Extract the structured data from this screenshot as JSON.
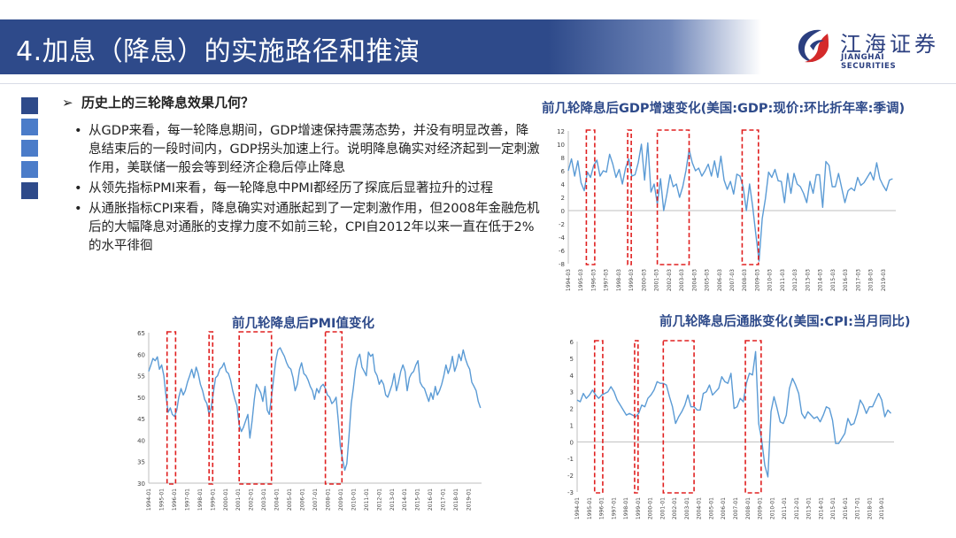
{
  "header": {
    "title": "4.加息（降息）的实施路径和推演",
    "logo_cn": "江海证券",
    "logo_en": "JIANGHAI SECURITIES"
  },
  "colors": {
    "header_blue": "#2e4a8a",
    "series_blue": "#5b9bd5",
    "highlight_red": "#e02020",
    "side_squares": [
      "#2e4a8a",
      "#4b7cc9",
      "#4b7cc9",
      "#4b7cc9",
      "#2e4a8a"
    ]
  },
  "content": {
    "question": "历史上的三轮降息效果几何？",
    "arrow": "➢",
    "bullet": "•",
    "items": [
      "从GDP来看，每一轮降息期间，GDP增速保持震荡态势，并没有明显改善，降息结束后的一段时间内，GDP拐头加速上行。说明降息确实对经济起到一定刺激作用，美联储一般会等到经济企稳后停止降息",
      "从领先指标PMI来看，每一轮降息中PMI都经历了探底后显著拉升的过程",
      "从通胀指标CPI来看，降息确实对通胀起到了一定刺激作用，但2008年金融危机后的大幅降息对通胀的支撑力度不如前三轮，CPI自2012年以来一直在低于2%的水平徘徊"
    ]
  },
  "chart_data": [
    {
      "id": "gdp",
      "type": "line",
      "title": "前几轮降息后GDP增速变化(美国:GDP:现价:环比折年率:季调)",
      "xlabel": "",
      "ylabel": "",
      "ylim": [
        -8,
        12
      ],
      "yticks": [
        -8,
        -6,
        -4,
        -2,
        0,
        2,
        4,
        6,
        8,
        10,
        12
      ],
      "xlim": [
        1994.0,
        2019.75
      ],
      "xtick_labels": [
        "1994-03",
        "1995-03",
        "1996-03",
        "1997-03",
        "1998-03",
        "1999-03",
        "2000-03",
        "2001-03",
        "2002-03",
        "2003-03",
        "2004-03",
        "2005-03",
        "2006-03",
        "2007-03",
        "2008-03",
        "2009-03",
        "2010-03",
        "2011-03",
        "2012-03",
        "2013-03",
        "2014-03",
        "2015-03",
        "2016-03",
        "2017-03",
        "2018-03",
        "2019-03"
      ],
      "grid": false,
      "x": [
        1994.0,
        1994.25,
        1994.5,
        1994.75,
        1995.0,
        1995.25,
        1995.5,
        1995.75,
        1996.0,
        1996.25,
        1996.5,
        1996.75,
        1997.0,
        1997.25,
        1997.5,
        1997.75,
        1998.0,
        1998.25,
        1998.5,
        1998.75,
        1999.0,
        1999.25,
        1999.5,
        1999.75,
        2000.0,
        2000.25,
        2000.5,
        2000.75,
        2001.0,
        2001.25,
        2001.5,
        2001.75,
        2002.0,
        2002.25,
        2002.5,
        2002.75,
        2003.0,
        2003.25,
        2003.5,
        2003.75,
        2004.0,
        2004.25,
        2004.5,
        2004.75,
        2005.0,
        2005.25,
        2005.5,
        2005.75,
        2006.0,
        2006.25,
        2006.5,
        2006.75,
        2007.0,
        2007.25,
        2007.5,
        2007.75,
        2008.0,
        2008.25,
        2008.5,
        2008.75,
        2009.0,
        2009.25,
        2009.5,
        2009.75,
        2010.0,
        2010.25,
        2010.5,
        2010.75,
        2011.0,
        2011.25,
        2011.5,
        2011.75,
        2012.0,
        2012.25,
        2012.5,
        2012.75,
        2013.0,
        2013.25,
        2013.5,
        2013.75,
        2014.0,
        2014.25,
        2014.5,
        2014.75,
        2015.0,
        2015.25,
        2015.5,
        2015.75,
        2016.0,
        2016.25,
        2016.5,
        2016.75,
        2017.0,
        2017.25,
        2017.5,
        2017.75,
        2018.0,
        2018.25,
        2018.5,
        2018.75,
        2019.0,
        2019.25,
        2019.5
      ],
      "series": [
        {
          "values": [
            6.0,
            7.8,
            5.2,
            7.5,
            4.2,
            3.0,
            5.8,
            5.0,
            6.8,
            7.6,
            5.2,
            6.0,
            5.8,
            8.5,
            7.0,
            5.0,
            6.2,
            4.0,
            6.4,
            7.8,
            5.2,
            5.4,
            7.2,
            10.0,
            4.6,
            10.2,
            2.8,
            4.0,
            1.0,
            4.8,
            0.0,
            2.5,
            5.4,
            3.6,
            4.0,
            2.0,
            3.6,
            6.0,
            9.2,
            7.2,
            6.0,
            6.4,
            5.2,
            6.0,
            7.0,
            5.2,
            7.5,
            5.0,
            8.2,
            4.6,
            3.2,
            4.4,
            2.5,
            5.5,
            5.2,
            3.5,
            0.0,
            4.0,
            0.6,
            -3.6,
            -7.6,
            -1.2,
            1.8,
            5.8,
            5.0,
            6.2,
            4.5,
            4.4,
            1.2,
            5.6,
            2.6,
            5.6,
            4.0,
            3.6,
            2.6,
            1.2,
            4.4,
            2.6,
            5.4,
            5.4,
            0.5,
            7.4,
            6.8,
            3.6,
            3.6,
            5.6,
            3.4,
            1.2,
            3.0,
            3.4,
            3.0,
            5.0,
            3.8,
            4.2,
            5.0,
            5.8,
            4.6,
            7.2,
            4.8,
            3.8,
            3.0,
            4.6,
            4.8
          ]
        }
      ],
      "highlight_periods": [
        [
          1995.42,
          1996.08
        ],
        [
          1998.67,
          1998.95
        ],
        [
          2001.0,
          2003.5
        ],
        [
          2007.67,
          2008.95
        ]
      ]
    },
    {
      "id": "pmi",
      "type": "line",
      "title": "前几轮降息后PMI值变化",
      "xlabel": "",
      "ylabel": "",
      "ylim": [
        30,
        65
      ],
      "yticks": [
        30,
        35,
        40,
        45,
        50,
        55,
        60,
        65
      ],
      "xlim": [
        1994.0,
        2019.75
      ],
      "xtick_labels": [
        "1994-01",
        "1995-01",
        "1996-01",
        "1997-01",
        "1998-01",
        "1999-01",
        "2000-01",
        "2001-01",
        "2002-01",
        "2003-01",
        "2004-01",
        "2005-01",
        "2006-01",
        "2007-01",
        "2008-01",
        "2009-01",
        "2010-01",
        "2011-01",
        "2012-01",
        "2013-01",
        "2014-01",
        "2015-01",
        "2016-01",
        "2017-01",
        "2018-01",
        "2019-01"
      ],
      "grid": false,
      "x": [
        1994.0,
        1994.17,
        1994.33,
        1994.5,
        1994.67,
        1994.83,
        1995.0,
        1995.17,
        1995.33,
        1995.5,
        1995.67,
        1995.83,
        1996.0,
        1996.17,
        1996.33,
        1996.5,
        1996.67,
        1996.83,
        1997.0,
        1997.17,
        1997.33,
        1997.5,
        1997.67,
        1997.83,
        1998.0,
        1998.17,
        1998.33,
        1998.5,
        1998.67,
        1998.83,
        1999.0,
        1999.17,
        1999.33,
        1999.5,
        1999.67,
        1999.83,
        2000.0,
        2000.17,
        2000.33,
        2000.5,
        2000.67,
        2000.83,
        2001.0,
        2001.17,
        2001.33,
        2001.5,
        2001.67,
        2001.83,
        2002.0,
        2002.17,
        2002.33,
        2002.5,
        2002.67,
        2002.83,
        2003.0,
        2003.17,
        2003.33,
        2003.5,
        2003.67,
        2003.83,
        2004.0,
        2004.17,
        2004.33,
        2004.5,
        2004.67,
        2004.83,
        2005.0,
        2005.17,
        2005.33,
        2005.5,
        2005.67,
        2005.83,
        2006.0,
        2006.17,
        2006.33,
        2006.5,
        2006.67,
        2006.83,
        2007.0,
        2007.17,
        2007.33,
        2007.5,
        2007.67,
        2007.83,
        2008.0,
        2008.17,
        2008.33,
        2008.5,
        2008.67,
        2008.83,
        2009.0,
        2009.17,
        2009.33,
        2009.5,
        2009.67,
        2009.83,
        2010.0,
        2010.17,
        2010.33,
        2010.5,
        2010.67,
        2010.83,
        2011.0,
        2011.17,
        2011.33,
        2011.5,
        2011.67,
        2011.83,
        2012.0,
        2012.17,
        2012.33,
        2012.5,
        2012.67,
        2012.83,
        2013.0,
        2013.17,
        2013.33,
        2013.5,
        2013.67,
        2013.83,
        2014.0,
        2014.17,
        2014.33,
        2014.5,
        2014.67,
        2014.83,
        2015.0,
        2015.17,
        2015.33,
        2015.5,
        2015.67,
        2015.83,
        2016.0,
        2016.17,
        2016.33,
        2016.5,
        2016.67,
        2016.83,
        2017.0,
        2017.17,
        2017.33,
        2017.5,
        2017.67,
        2017.83,
        2018.0,
        2018.17,
        2018.33,
        2018.5,
        2018.67,
        2018.83,
        2019.0,
        2019.17,
        2019.33,
        2019.5,
        2019.67
      ],
      "series": [
        {
          "values": [
            56.0,
            57.5,
            59.0,
            58.5,
            59.4,
            56.5,
            57.5,
            55.0,
            50.5,
            46.5,
            47.5,
            46.0,
            45.5,
            47.0,
            50.0,
            52.0,
            50.5,
            51.5,
            53.5,
            55.0,
            56.5,
            54.5,
            57.0,
            55.5,
            53.0,
            51.5,
            49.5,
            48.5,
            46.0,
            47.5,
            51.0,
            54.5,
            55.0,
            56.5,
            57.0,
            58.0,
            56.0,
            55.5,
            54.0,
            51.5,
            49.5,
            48.0,
            43.5,
            42.0,
            43.0,
            44.5,
            46.0,
            40.5,
            44.5,
            49.5,
            53.0,
            52.0,
            51.0,
            49.0,
            52.5,
            47.0,
            46.0,
            50.0,
            54.5,
            58.5,
            61.0,
            61.5,
            60.5,
            59.5,
            58.0,
            57.0,
            56.5,
            54.5,
            51.5,
            53.0,
            56.5,
            58.0,
            55.5,
            55.0,
            54.0,
            52.5,
            51.5,
            49.5,
            52.0,
            51.0,
            52.5,
            53.0,
            52.0,
            50.5,
            50.0,
            48.5,
            49.0,
            50.0,
            44.5,
            38.5,
            35.5,
            33.0,
            34.5,
            41.0,
            48.5,
            52.0,
            56.5,
            59.0,
            60.0,
            57.0,
            56.0,
            55.0,
            60.5,
            59.5,
            60.0,
            56.0,
            55.0,
            53.0,
            54.0,
            53.0,
            50.5,
            50.0,
            51.5,
            53.0,
            55.5,
            51.5,
            53.5,
            56.0,
            57.5,
            56.0,
            51.5,
            54.5,
            55.5,
            56.0,
            57.5,
            58.5,
            53.5,
            52.5,
            52.0,
            50.5,
            49.0,
            51.0,
            49.5,
            52.5,
            50.5,
            51.5,
            53.0,
            55.0,
            57.5,
            55.5,
            57.0,
            59.5,
            56.0,
            57.5,
            60.0,
            58.5,
            61.0,
            59.0,
            57.5,
            56.5,
            53.5,
            52.5,
            51.5,
            49.0,
            47.5
          ]
        }
      ],
      "highlight_periods": [
        [
          1995.42,
          1996.08
        ],
        [
          1998.67,
          1998.95
        ],
        [
          2001.0,
          2003.5
        ],
        [
          2007.67,
          2008.95
        ]
      ]
    },
    {
      "id": "cpi",
      "type": "line",
      "title": "前几轮降息后通胀变化(美国:CPI:当月同比)",
      "xlabel": "",
      "ylabel": "",
      "ylim": [
        -3,
        6
      ],
      "yticks": [
        -3,
        -2,
        -1,
        0,
        1,
        2,
        3,
        4,
        5,
        6
      ],
      "xlim": [
        1994.0,
        2019.75
      ],
      "xtick_labels": [
        "1994-01",
        "1995-01",
        "1996-01",
        "1997-01",
        "1998-01",
        "1999-01",
        "2000-01",
        "2001-01",
        "2002-01",
        "2003-01",
        "2004-01",
        "2005-01",
        "2006-01",
        "2007-01",
        "2008-01",
        "2009-01",
        "2010-01",
        "2011-01",
        "2012-01",
        "2013-01",
        "2014-01",
        "2015-01",
        "2016-01",
        "2017-01",
        "2018-01",
        "2019-01"
      ],
      "grid": false,
      "x": [
        1994.0,
        1994.25,
        1994.5,
        1994.75,
        1995.0,
        1995.25,
        1995.5,
        1995.75,
        1996.0,
        1996.25,
        1996.5,
        1996.75,
        1997.0,
        1997.25,
        1997.5,
        1997.75,
        1998.0,
        1998.25,
        1998.5,
        1998.75,
        1999.0,
        1999.25,
        1999.5,
        1999.75,
        2000.0,
        2000.25,
        2000.5,
        2000.75,
        2001.0,
        2001.25,
        2001.5,
        2001.75,
        2002.0,
        2002.25,
        2002.5,
        2002.75,
        2003.0,
        2003.25,
        2003.5,
        2003.75,
        2004.0,
        2004.25,
        2004.5,
        2004.75,
        2005.0,
        2005.25,
        2005.5,
        2005.75,
        2006.0,
        2006.25,
        2006.5,
        2006.75,
        2007.0,
        2007.25,
        2007.5,
        2007.75,
        2008.0,
        2008.25,
        2008.5,
        2008.75,
        2009.0,
        2009.25,
        2009.5,
        2009.75,
        2010.0,
        2010.25,
        2010.5,
        2010.75,
        2011.0,
        2011.25,
        2011.5,
        2011.75,
        2012.0,
        2012.25,
        2012.5,
        2012.75,
        2013.0,
        2013.25,
        2013.5,
        2013.75,
        2014.0,
        2014.25,
        2014.5,
        2014.75,
        2015.0,
        2015.25,
        2015.5,
        2015.75,
        2016.0,
        2016.25,
        2016.5,
        2016.75,
        2017.0,
        2017.25,
        2017.5,
        2017.75,
        2018.0,
        2018.25,
        2018.5,
        2018.75,
        2019.0,
        2019.25,
        2019.5
      ],
      "series": [
        {
          "values": [
            2.5,
            2.4,
            2.9,
            2.6,
            2.8,
            3.1,
            2.8,
            2.6,
            2.8,
            2.9,
            3.0,
            3.3,
            3.0,
            2.5,
            2.2,
            1.9,
            1.6,
            1.7,
            1.6,
            1.5,
            1.7,
            2.2,
            2.1,
            2.6,
            2.8,
            3.1,
            3.6,
            3.5,
            3.5,
            3.4,
            2.7,
            2.1,
            1.1,
            1.5,
            1.8,
            2.2,
            2.8,
            2.1,
            2.1,
            1.9,
            1.9,
            2.9,
            3.0,
            3.4,
            2.8,
            3.0,
            3.2,
            3.9,
            3.6,
            3.5,
            4.1,
            2.0,
            2.1,
            2.6,
            2.4,
            3.5,
            4.1,
            4.0,
            5.4,
            1.1,
            0.1,
            -1.4,
            -2.1,
            1.8,
            2.7,
            2.0,
            1.2,
            1.1,
            1.6,
            3.2,
            3.8,
            3.4,
            2.9,
            1.7,
            1.4,
            1.8,
            1.6,
            1.4,
            1.5,
            1.2,
            1.6,
            2.1,
            2.0,
            1.3,
            -0.1,
            -0.1,
            0.2,
            0.5,
            1.4,
            1.0,
            1.1,
            1.7,
            2.5,
            2.2,
            1.7,
            2.1,
            2.1,
            2.5,
            2.9,
            2.5,
            1.5,
            1.9,
            1.7
          ]
        }
      ],
      "highlight_periods": [
        [
          1995.42,
          1996.08
        ],
        [
          1998.67,
          1998.95
        ],
        [
          2001.0,
          2003.5
        ],
        [
          2007.67,
          2008.95
        ]
      ]
    }
  ]
}
